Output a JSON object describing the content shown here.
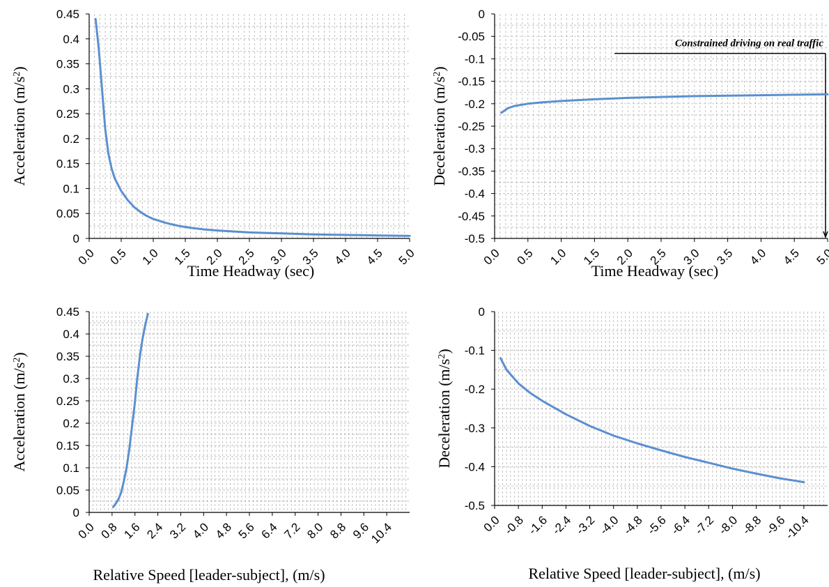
{
  "colors": {
    "series": "#5B8FD0",
    "grid": "#A8A8A8",
    "axis": "#000000"
  },
  "chart_data": [
    {
      "type": "line",
      "xlabel": "Time Headway (sec)",
      "ylabel": "Acceleration (m/s2)",
      "ylabel_base": "Acceleration (m/s",
      "ylabel_sup": "2",
      "ylabel_end": ")",
      "xlim": [
        0,
        5
      ],
      "ylim": [
        0,
        0.45
      ],
      "xticks": [
        "0.0",
        "0.5",
        "1.0",
        "1.5",
        "2.0",
        "2.5",
        "3.0",
        "3.5",
        "4.0",
        "4.5",
        "5.0"
      ],
      "yticks": [
        "0",
        "0.05",
        "0.1",
        "0.15",
        "0.2",
        "0.25",
        "0.3",
        "0.35",
        "0.4",
        "0.45"
      ],
      "grid": true,
      "series": [
        {
          "x": [
            0.1,
            0.15,
            0.2,
            0.25,
            0.3,
            0.35,
            0.4,
            0.5,
            0.6,
            0.7,
            0.8,
            0.9,
            1.0,
            1.2,
            1.4,
            1.6,
            1.8,
            2.0,
            2.5,
            3.0,
            3.5,
            4.0,
            4.5,
            5.0
          ],
          "y": [
            0.44,
            0.38,
            0.3,
            0.22,
            0.17,
            0.14,
            0.12,
            0.095,
            0.077,
            0.063,
            0.053,
            0.045,
            0.039,
            0.031,
            0.025,
            0.021,
            0.018,
            0.016,
            0.012,
            0.01,
            0.008,
            0.007,
            0.006,
            0.005
          ]
        }
      ]
    },
    {
      "type": "line",
      "xlabel": "Time Headway (sec)",
      "ylabel": "Deceleration (m/s2)",
      "ylabel_base": "Deceleration (m/s",
      "ylabel_sup": "2",
      "ylabel_end": ")",
      "xlim": [
        0,
        5
      ],
      "ylim": [
        -0.5,
        0
      ],
      "xticks": [
        "0.0",
        "0.5",
        "1.0",
        "1.5",
        "2.0",
        "2.5",
        "3.0",
        "3.5",
        "4.0",
        "4.5",
        "5.0"
      ],
      "yticks": [
        "0",
        "-0.05",
        "-0.1",
        "-0.15",
        "-0.2",
        "-0.25",
        "-0.3",
        "-0.35",
        "-0.4",
        "-0.45",
        "-0.5"
      ],
      "grid": true,
      "annotation": {
        "text": "Constrained driving on real traffic",
        "x_start": 1.8,
        "y": -0.088
      },
      "series": [
        {
          "x": [
            0.1,
            0.2,
            0.3,
            0.5,
            0.7,
            1.0,
            1.5,
            2.0,
            2.5,
            3.0,
            3.5,
            4.0,
            4.5,
            5.0
          ],
          "y": [
            -0.22,
            -0.21,
            -0.205,
            -0.2,
            -0.197,
            -0.194,
            -0.19,
            -0.187,
            -0.185,
            -0.183,
            -0.182,
            -0.181,
            -0.18,
            -0.179
          ]
        }
      ]
    },
    {
      "type": "line",
      "xlabel": "Relative Speed [leader-subject], (m/s)",
      "ylabel": "Acceleration (m/s2)",
      "ylabel_base": "Acceleration (m/s",
      "ylabel_sup": "2",
      "ylabel_end": ")",
      "xlim": [
        0,
        12
      ],
      "ylim": [
        0,
        0.45
      ],
      "xticks": [
        "0.0",
        "0.8",
        "1.6",
        "2.4",
        "3.2",
        "4.0",
        "4.8",
        "5.6",
        "6.4",
        "7.2",
        "8.0",
        "8.8",
        "9.6",
        "10.4"
      ],
      "yticks": [
        "0",
        "0.05",
        "0.1",
        "0.15",
        "0.2",
        "0.25",
        "0.3",
        "0.35",
        "0.4",
        "0.45"
      ],
      "grid": true,
      "series": [
        {
          "x": [
            0.9,
            1.0,
            1.1,
            1.2,
            1.3,
            1.4,
            1.5,
            1.6,
            1.7,
            1.8,
            1.9,
            2.0,
            2.1,
            2.2
          ],
          "y": [
            0.012,
            0.02,
            0.03,
            0.045,
            0.07,
            0.1,
            0.14,
            0.19,
            0.24,
            0.3,
            0.35,
            0.39,
            0.42,
            0.445
          ]
        }
      ]
    },
    {
      "type": "line",
      "xlabel": "Relative Speed [leader-subject], (m/s)",
      "ylabel": "Deceleration (m/s2)",
      "ylabel_base": "Deceleration (m/s",
      "ylabel_sup": "2",
      "ylabel_end": ")",
      "xlim": [
        0,
        -11.2
      ],
      "ylim": [
        -0.5,
        0
      ],
      "xticks": [
        "0.0",
        "-0.8",
        "-1.6",
        "-2.4",
        "-3.2",
        "-4.0",
        "-4.8",
        "-5.6",
        "-6.4",
        "-7.2",
        "-8.0",
        "-8.8",
        "-9.6",
        "-10.4"
      ],
      "yticks": [
        "0",
        "-0.1",
        "-0.2",
        "-0.3",
        "-0.4",
        "-0.5"
      ],
      "grid": true,
      "series": [
        {
          "x": [
            -0.2,
            -0.4,
            -0.8,
            -1.2,
            -1.6,
            -2.4,
            -3.2,
            -4.0,
            -4.8,
            -5.6,
            -6.4,
            -7.2,
            -8.0,
            -8.8,
            -9.6,
            -10.4
          ],
          "y": [
            -0.12,
            -0.15,
            -0.185,
            -0.21,
            -0.23,
            -0.265,
            -0.295,
            -0.32,
            -0.34,
            -0.358,
            -0.375,
            -0.39,
            -0.405,
            -0.418,
            -0.43,
            -0.44
          ]
        }
      ]
    }
  ]
}
